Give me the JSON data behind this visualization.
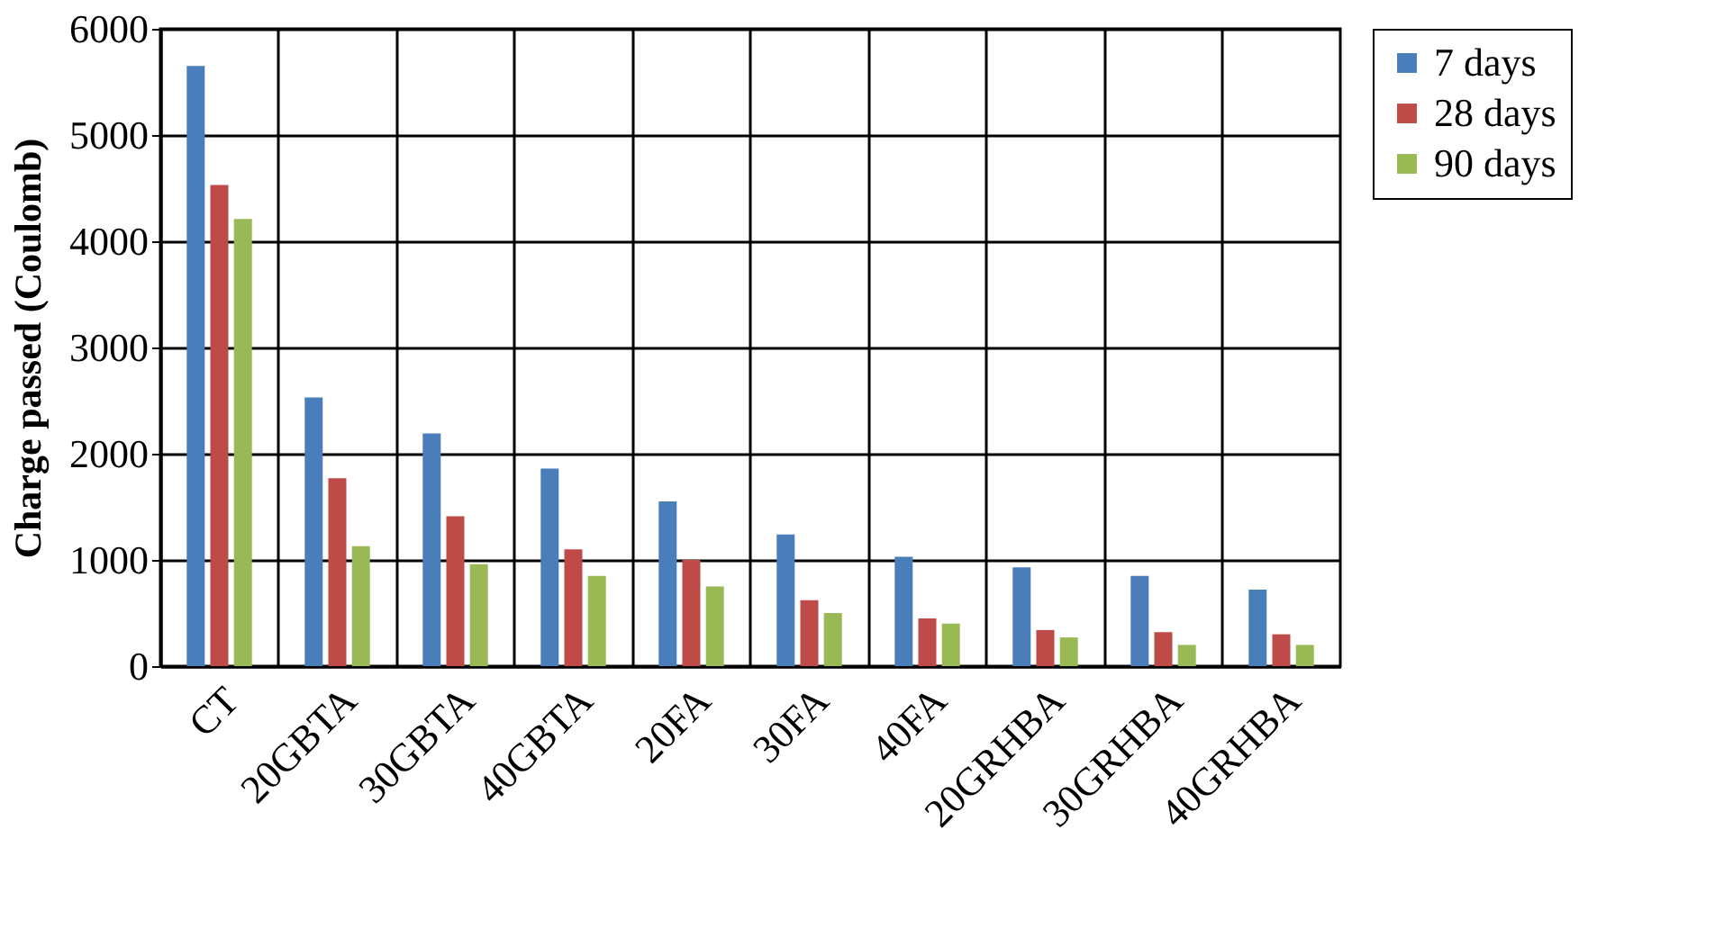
{
  "chart_data": {
    "type": "bar",
    "ylabel": "Charge passed (Coulomb)",
    "categories": [
      "CT",
      "20GBTA",
      "30GBTA",
      "40GBTA",
      "20FA",
      "30FA",
      "40FA",
      "20GRHBA",
      "30GRHBA",
      "40GRHBA"
    ],
    "series": [
      {
        "name": "7 days",
        "color": "#4a7ebb",
        "values": [
          5650,
          2530,
          2190,
          1860,
          1550,
          1240,
          1030,
          930,
          850,
          720
        ]
      },
      {
        "name": "28 days",
        "color": "#be4b48",
        "values": [
          4530,
          1770,
          1410,
          1100,
          1000,
          620,
          450,
          340,
          320,
          300
        ]
      },
      {
        "name": "90 days",
        "color": "#98b954",
        "values": [
          4210,
          1130,
          960,
          850,
          750,
          500,
          400,
          270,
          200,
          200
        ]
      }
    ],
    "ylim": [
      0,
      6000
    ],
    "yticks": [
      0,
      1000,
      2000,
      3000,
      4000,
      5000,
      6000
    ],
    "grid": true,
    "legend": "right"
  }
}
